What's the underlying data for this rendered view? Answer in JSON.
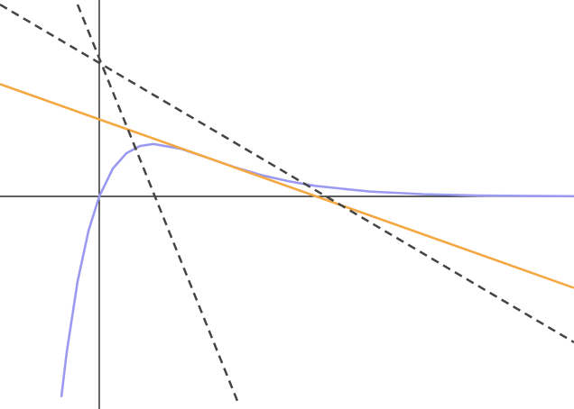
{
  "chart_data": {
    "type": "line",
    "xlim": [
      -1.833,
      8.767
    ],
    "ylim": [
      -1.494,
      1.38
    ],
    "axes_through_origin": true,
    "series": [
      {
        "color": "#9a9af0",
        "dashed": false,
        "x": [
          -0.7,
          -0.6,
          -0.4,
          -0.2,
          0,
          0.25,
          0.5,
          0.75,
          1,
          1.5,
          2,
          2.5,
          3,
          3.5,
          4,
          5,
          6,
          7,
          8,
          8.767
        ],
        "values": [
          -1.41,
          -1.093,
          -0.597,
          -0.244,
          0,
          0.195,
          0.303,
          0.354,
          0.368,
          0.335,
          0.271,
          0.205,
          0.149,
          0.106,
          0.073,
          0.034,
          0.015,
          0.006,
          0.003,
          0.001
        ]
      },
      {
        "color": "#f5a742",
        "dashed": false,
        "x": [
          -1.833,
          8.767
        ],
        "values": [
          0.789,
          -0.643
        ]
      },
      {
        "color": "#444444",
        "dashed": true,
        "x": [
          -1.833,
          8.767
        ],
        "values": [
          1.348,
          -1.025
        ]
      },
      {
        "color": "#444444",
        "dashed": true,
        "x": [
          -0.4,
          2.583
        ],
        "values": [
          1.348,
          -1.468
        ]
      }
    ]
  }
}
